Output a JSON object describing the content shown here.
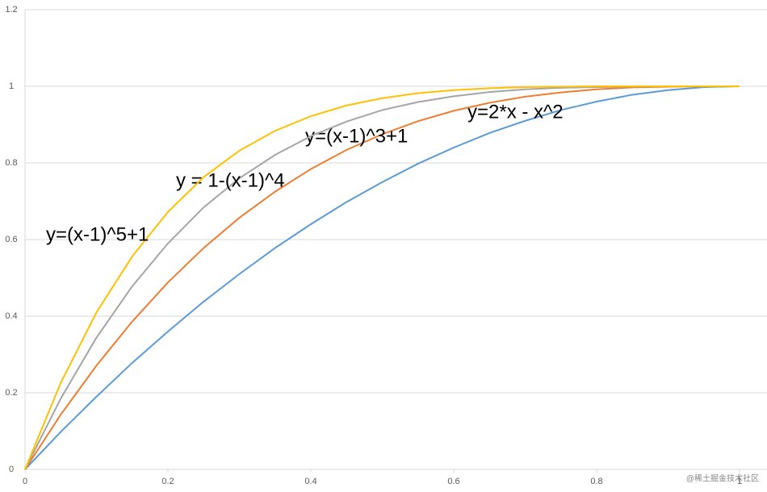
{
  "chart_data": {
    "type": "line",
    "x": [
      0,
      0.05,
      0.1,
      0.15,
      0.2,
      0.25,
      0.3,
      0.35,
      0.4,
      0.45,
      0.5,
      0.55,
      0.6,
      0.65,
      0.7,
      0.75,
      0.8,
      0.85,
      0.9,
      0.95,
      1
    ],
    "series": [
      {
        "name": "y=2*x - x^2",
        "color": "#5b9bd5",
        "values": [
          0,
          0.098,
          0.19,
          0.278,
          0.36,
          0.438,
          0.51,
          0.578,
          0.64,
          0.698,
          0.75,
          0.798,
          0.84,
          0.878,
          0.91,
          0.938,
          0.96,
          0.978,
          0.99,
          0.998,
          1
        ]
      },
      {
        "name": "y=(x-1)^3+1",
        "color": "#ed7d31",
        "values": [
          0,
          0.143,
          0.271,
          0.386,
          0.488,
          0.578,
          0.657,
          0.725,
          0.784,
          0.834,
          0.875,
          0.909,
          0.936,
          0.957,
          0.973,
          0.984,
          0.992,
          0.997,
          0.999,
          1,
          1
        ]
      },
      {
        "name": "y = 1-(x-1)^4",
        "color": "#a5a5a5",
        "values": [
          0,
          0.185,
          0.344,
          0.478,
          0.59,
          0.684,
          0.76,
          0.821,
          0.87,
          0.908,
          0.938,
          0.959,
          0.974,
          0.985,
          0.992,
          0.996,
          0.998,
          0.999,
          1,
          1,
          1
        ]
      },
      {
        "name": "y=(x-1)^5+1",
        "color": "#ffc000",
        "values": [
          0,
          0.226,
          0.41,
          0.556,
          0.672,
          0.763,
          0.832,
          0.884,
          0.922,
          0.95,
          0.969,
          0.982,
          0.99,
          0.995,
          0.998,
          0.999,
          1,
          1,
          1,
          1,
          1
        ]
      }
    ],
    "xlim": [
      0,
      1
    ],
    "xticks": [
      0,
      0.2,
      0.4,
      0.6,
      0.8,
      1
    ],
    "ylim": [
      0,
      1.2
    ],
    "yticks": [
      0,
      0.2,
      0.4,
      0.6,
      0.8,
      1,
      1.2
    ],
    "grid": true,
    "watermark": "@稀土掘金技术社区"
  }
}
